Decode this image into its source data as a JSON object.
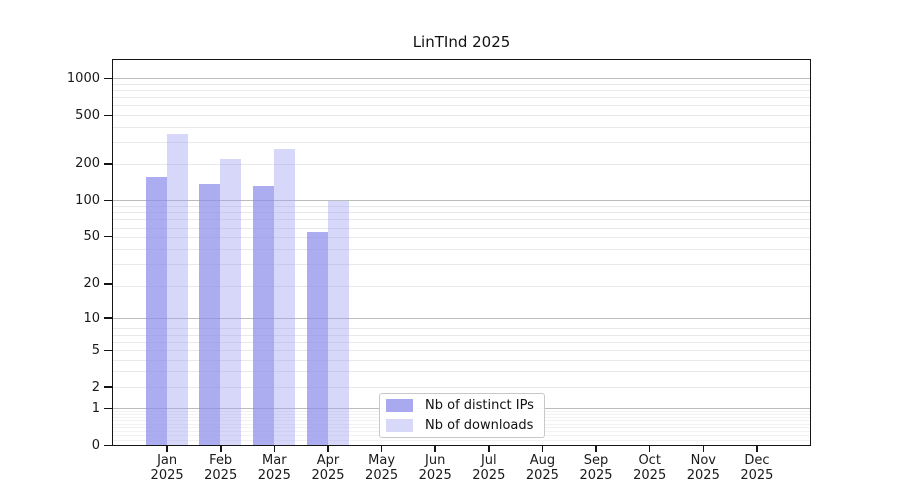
{
  "chart_data": {
    "type": "bar",
    "title": "LinTInd 2025",
    "categories": [
      "Jan 2025",
      "Feb 2025",
      "Mar 2025",
      "Apr 2025",
      "May 2025",
      "Jun 2025",
      "Jul 2025",
      "Aug 2025",
      "Sep 2025",
      "Oct 2025",
      "Nov 2025",
      "Dec 2025"
    ],
    "series": [
      {
        "name": "Nb of distinct IPs",
        "color": "#a9a9ef",
        "bar_fill": "rgba(140,140,235,0.72)",
        "values": [
          155,
          135,
          129,
          54,
          0,
          0,
          0,
          0,
          0,
          0,
          0,
          0
        ]
      },
      {
        "name": "Nb of downloads",
        "color": "#d8d8f8",
        "bar_fill": "rgba(160,160,240,0.42)",
        "values": [
          350,
          217,
          263,
          97,
          0,
          0,
          0,
          0,
          0,
          0,
          0,
          0
        ]
      }
    ],
    "yaxis": {
      "scale": "log(value+1)",
      "ticks": [
        1000,
        500,
        200,
        100,
        50,
        20,
        10,
        5,
        2,
        1,
        0
      ],
      "range": [
        0,
        1400
      ]
    },
    "xlabel": "",
    "ylabel": "",
    "grid": true,
    "legend_position": "lower-center"
  }
}
